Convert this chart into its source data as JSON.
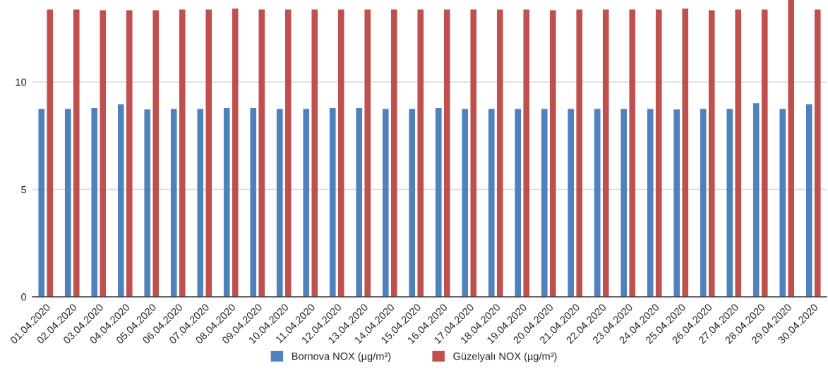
{
  "chart_data": {
    "type": "bar",
    "categories": [
      "01.04.2020",
      "02.04.2020",
      "03.04.2020",
      "04.04.2020",
      "05.04.2020",
      "06.04.2020",
      "07.04.2020",
      "08.04.2020",
      "09.04.2020",
      "10.04.2020",
      "11.04.2020",
      "12.04.2020",
      "13.04.2020",
      "14.04.2020",
      "15.04.2020",
      "16.04.2020",
      "17.04.2020",
      "18.04.2020",
      "19.04.2020",
      "20.04.2020",
      "21.04.2020",
      "22.04.2020",
      "23.04.2020",
      "24.04.2020",
      "25.04.2020",
      "26.04.2020",
      "27.04.2020",
      "28.04.2020",
      "29.04.2020",
      "30.04.2020"
    ],
    "series": [
      {
        "name": "Bornova NOX (µg/m³)",
        "color": "#4f81bd",
        "values": [
          8.75,
          8.75,
          8.8,
          8.96,
          8.72,
          8.75,
          8.75,
          8.8,
          8.8,
          8.75,
          8.75,
          8.8,
          8.8,
          8.75,
          8.75,
          8.8,
          8.75,
          8.75,
          8.75,
          8.75,
          8.75,
          8.75,
          8.75,
          8.75,
          8.72,
          8.75,
          8.75,
          9.02,
          8.75,
          8.96
        ]
      },
      {
        "name": "Güzelyalı NOX (µg/m³)",
        "color": "#c0504d",
        "values": [
          13.38,
          13.38,
          13.34,
          13.34,
          13.34,
          13.38,
          13.38,
          13.42,
          13.38,
          13.38,
          13.38,
          13.38,
          13.38,
          13.38,
          13.38,
          13.38,
          13.38,
          13.38,
          13.38,
          13.34,
          13.38,
          13.38,
          13.38,
          13.38,
          13.42,
          13.34,
          13.38,
          13.38,
          13.82,
          13.38
        ]
      }
    ],
    "ylim": [
      0,
      13.82
    ],
    "yticks": [
      0,
      5,
      10
    ],
    "grid": "y",
    "legend": "bottom"
  }
}
